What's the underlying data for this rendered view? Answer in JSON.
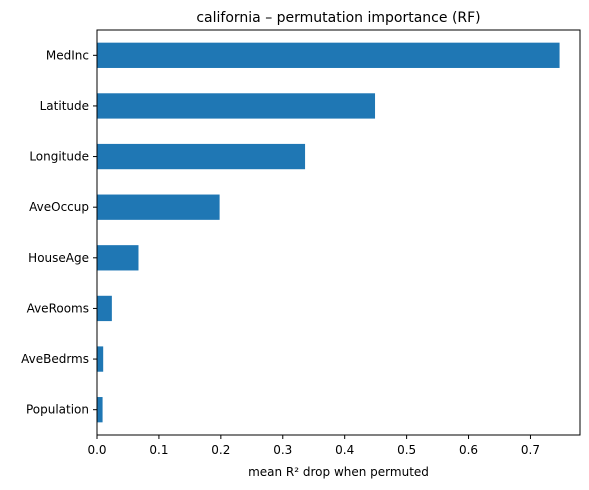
{
  "chart_data": {
    "type": "bar",
    "orientation": "horizontal",
    "title": "california – permutation importance (RF)",
    "xlabel": "mean R² drop when permuted",
    "ylabel": "",
    "categories": [
      "MedInc",
      "Latitude",
      "Longitude",
      "AveOccup",
      "HouseAge",
      "AveRooms",
      "AveBedrms",
      "Population"
    ],
    "values": [
      0.747,
      0.449,
      0.336,
      0.198,
      0.067,
      0.024,
      0.01,
      0.009
    ],
    "xlim": [
      0.0,
      0.78
    ],
    "xticks": [
      0.0,
      0.1,
      0.2,
      0.3,
      0.4,
      0.5,
      0.6,
      0.7
    ],
    "xtick_labels": [
      "0.0",
      "0.1",
      "0.2",
      "0.3",
      "0.4",
      "0.5",
      "0.6",
      "0.7"
    ],
    "bar_color": "#1f77b4",
    "grid": false,
    "legend": null
  }
}
